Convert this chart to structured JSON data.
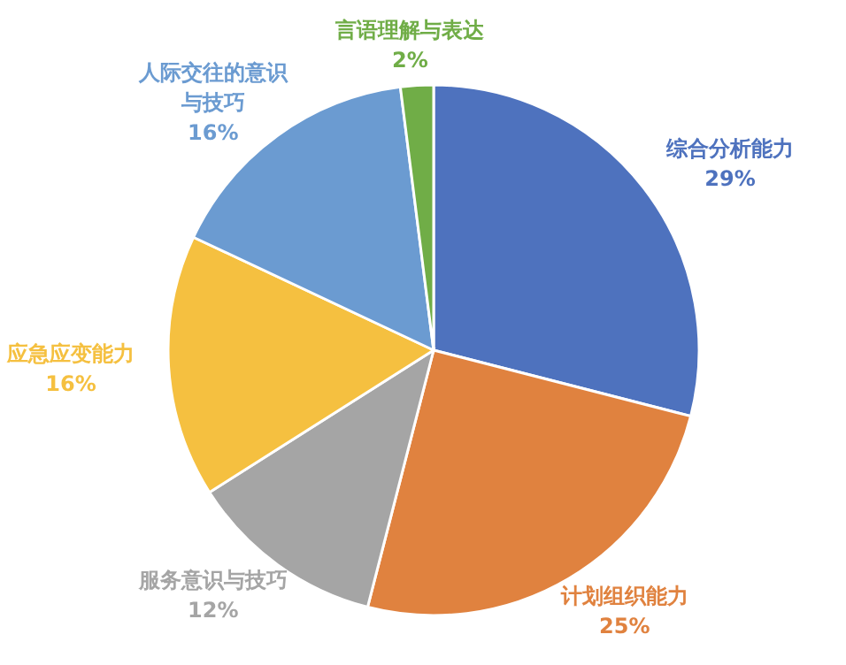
{
  "chart_data": {
    "type": "pie",
    "categories": [
      "综合分析能力",
      "计划组织能力",
      "服务意识与技巧",
      "应急应变能力",
      "人际交往的意识与技巧",
      "言语理解与表达"
    ],
    "values": [
      29,
      25,
      12,
      16,
      16,
      2
    ],
    "colors": [
      "#4e72be",
      "#e0823f",
      "#a5a5a5",
      "#f5c040",
      "#6b9bd1",
      "#70ad47"
    ],
    "value_labels": [
      "29%",
      "25%",
      "12%",
      "16%",
      "16%",
      "2%"
    ]
  }
}
